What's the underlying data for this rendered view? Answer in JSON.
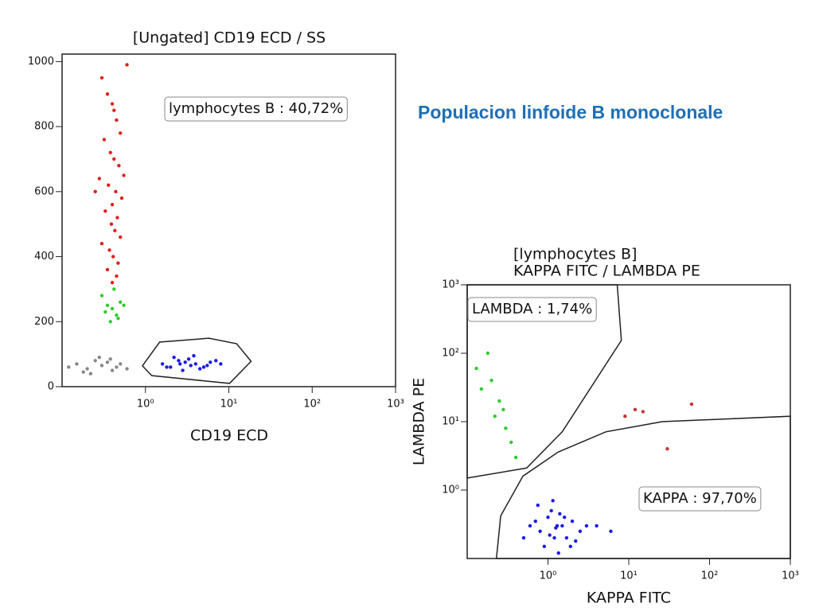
{
  "heading": "Populacion linfoide B monoclonale",
  "chart_data": [
    {
      "type": "scatter",
      "title": [
        "[Ungated] CD19 ECD / SS"
      ],
      "xlabel": "CD19 ECD",
      "xscale": "log",
      "xlim": [
        0.1,
        1000
      ],
      "xticks": [
        {
          "value": 1,
          "label": "10⁰"
        },
        {
          "value": 10,
          "label": "10¹"
        },
        {
          "value": 100,
          "label": "10²"
        },
        {
          "value": 1000,
          "label": "10³"
        }
      ],
      "ylim": [
        0,
        1023
      ],
      "yticks": [
        0,
        200,
        400,
        600,
        800,
        1000
      ],
      "series": [
        {
          "color": "#e0201b",
          "x": [
            0.3,
            0.35,
            0.4,
            0.45,
            0.5,
            0.32,
            0.38,
            0.42,
            0.48,
            0.55,
            0.28,
            0.36,
            0.44,
            0.52,
            0.4,
            0.33,
            0.46,
            0.39,
            0.43,
            0.5,
            0.3,
            0.37,
            0.41,
            0.47,
            0.35,
            0.45,
            0.4,
            0.6,
            0.25,
            0.42
          ],
          "values": [
            950,
            900,
            870,
            820,
            780,
            760,
            720,
            700,
            680,
            650,
            640,
            620,
            600,
            580,
            560,
            540,
            520,
            500,
            480,
            460,
            440,
            420,
            400,
            380,
            360,
            340,
            320,
            990,
            600,
            850
          ]
        },
        {
          "color": "#2ecc2e",
          "x": [
            0.3,
            0.35,
            0.4,
            0.45,
            0.5,
            0.38,
            0.42,
            0.33,
            0.47,
            0.55
          ],
          "values": [
            280,
            250,
            240,
            220,
            260,
            200,
            300,
            230,
            210,
            250
          ]
        },
        {
          "color": "#888888",
          "x": [
            0.12,
            0.15,
            0.2,
            0.25,
            0.3,
            0.35,
            0.4,
            0.45,
            0.5,
            0.6,
            0.18,
            0.28,
            0.38,
            0.22
          ],
          "values": [
            60,
            70,
            55,
            80,
            65,
            75,
            50,
            60,
            70,
            55,
            45,
            90,
            85,
            40
          ]
        },
        {
          "color": "#1a1ae6",
          "x": [
            1.6,
            2,
            2.5,
            3,
            3.5,
            4,
            5,
            6,
            7,
            2.2,
            2.8,
            3.3,
            4.5,
            1.8,
            2.6,
            3.8,
            5.5,
            8
          ],
          "values": [
            70,
            60,
            80,
            75,
            65,
            70,
            60,
            75,
            80,
            90,
            50,
            85,
            55,
            60,
            70,
            95,
            65,
            70
          ]
        }
      ],
      "gates": [
        {
          "label": "lymphocytes B : 40,72%",
          "x": [
            0.92,
            1.48,
            5.78,
            12.4,
            18.5,
            10.2,
            1.19
          ],
          "values": [
            64,
            137,
            149,
            132,
            78,
            10,
            34
          ]
        }
      ]
    },
    {
      "type": "scatter",
      "title": [
        "[lymphocytes B]",
        "KAPPA FITC / LAMBDA PE"
      ],
      "xlabel": "KAPPA FITC",
      "ylabel": "LAMBDA PE",
      "xscale": "log",
      "yscale": "log",
      "xlim": [
        0.1,
        1000
      ],
      "ylim": [
        0.1,
        1000
      ],
      "xticks": [
        {
          "value": 1,
          "label": "10⁰"
        },
        {
          "value": 10,
          "label": "10¹"
        },
        {
          "value": 100,
          "label": "10²"
        },
        {
          "value": 1000,
          "label": "10³"
        }
      ],
      "yticks": [
        {
          "value": 1,
          "label": "10⁰"
        },
        {
          "value": 10,
          "label": "10¹"
        },
        {
          "value": 100,
          "label": "10²"
        },
        {
          "value": 1000,
          "label": "10³"
        }
      ],
      "series": [
        {
          "color": "#1a1ae6",
          "x": [
            0.6,
            0.8,
            1,
            1.2,
            1.5,
            2,
            2.5,
            0.9,
            1.1,
            1.3,
            1.7,
            0.7,
            1.4,
            1.9,
            3,
            0.75,
            1.05,
            1.25,
            1.6,
            2.2,
            4,
            6,
            0.5,
            1.15,
            1.35
          ],
          "values": [
            0.3,
            0.25,
            0.4,
            0.2,
            0.3,
            0.35,
            0.25,
            0.15,
            0.5,
            0.3,
            0.2,
            0.35,
            0.45,
            0.15,
            0.3,
            0.6,
            0.22,
            0.28,
            0.4,
            0.18,
            0.3,
            0.25,
            0.2,
            0.7,
            0.12
          ]
        },
        {
          "color": "#2ecc2e",
          "x": [
            0.13,
            0.15,
            0.2,
            0.25,
            0.3,
            0.35,
            0.4,
            0.18,
            0.28,
            0.22
          ],
          "values": [
            60,
            30,
            40,
            20,
            8,
            5,
            3,
            100,
            15,
            12
          ]
        },
        {
          "color": "#c0392b",
          "x": [
            9,
            12,
            15,
            60,
            30
          ],
          "values": [
            12,
            15,
            14,
            18,
            4
          ]
        }
      ],
      "gates": [
        {
          "label": "LAMBDA : 1,74%",
          "x": [
            0.1,
            0.545,
            1.5,
            8.1,
            7.2,
            0.1
          ],
          "values": [
            1.5,
            2.1,
            7.1,
            154,
            1000,
            1000
          ]
        },
        {
          "label": "KAPPA : 97,70%",
          "x": [
            0.23,
            0.26,
            0.49,
            1.34,
            5.2,
            26,
            1000,
            1000
          ],
          "values": [
            0.1,
            0.42,
            1.6,
            3.6,
            7.1,
            10,
            12,
            0.1
          ]
        }
      ]
    }
  ]
}
